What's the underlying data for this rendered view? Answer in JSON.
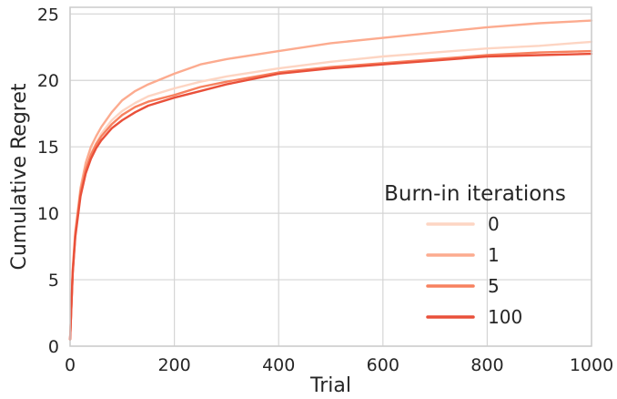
{
  "chart_data": {
    "type": "line",
    "xlabel": "Trial",
    "ylabel": "Cumulative Regret",
    "xlim": [
      0,
      1000
    ],
    "ylim": [
      0,
      25.5
    ],
    "xticks": [
      0,
      200,
      400,
      600,
      800,
      1000
    ],
    "yticks": [
      0,
      5,
      10,
      15,
      20,
      25
    ],
    "grid": true,
    "legend": {
      "title": "Burn-in iterations",
      "placement": "lower-right"
    },
    "x": [
      0,
      5,
      10,
      20,
      30,
      40,
      50,
      60,
      80,
      100,
      125,
      150,
      200,
      250,
      300,
      400,
      500,
      600,
      700,
      800,
      900,
      1000
    ],
    "series": [
      {
        "name": "0",
        "color": "#fdd5c3",
        "values": [
          0.5,
          5.5,
          8.3,
          11.5,
          13.2,
          14.5,
          15.3,
          16.0,
          17.0,
          17.7,
          18.3,
          18.8,
          19.4,
          19.9,
          20.3,
          20.9,
          21.4,
          21.8,
          22.1,
          22.4,
          22.6,
          22.9
        ]
      },
      {
        "name": "1",
        "color": "#fcab8f",
        "values": [
          0.5,
          5.8,
          8.6,
          11.9,
          13.8,
          15.0,
          15.8,
          16.5,
          17.6,
          18.5,
          19.2,
          19.7,
          20.5,
          21.2,
          21.6,
          22.2,
          22.8,
          23.2,
          23.6,
          24.0,
          24.3,
          24.5
        ]
      },
      {
        "name": "5",
        "color": "#f7815f",
        "values": [
          0.5,
          5.6,
          8.4,
          11.6,
          13.3,
          14.4,
          15.2,
          15.8,
          16.7,
          17.4,
          18.0,
          18.4,
          18.9,
          19.5,
          19.9,
          20.6,
          21.0,
          21.3,
          21.6,
          21.9,
          22.1,
          22.2
        ]
      },
      {
        "name": "100",
        "color": "#e9503a",
        "values": [
          0.5,
          5.5,
          8.2,
          11.3,
          13.0,
          14.1,
          14.9,
          15.5,
          16.4,
          17.0,
          17.6,
          18.1,
          18.7,
          19.2,
          19.7,
          20.5,
          20.9,
          21.2,
          21.5,
          21.8,
          21.9,
          22.0
        ]
      }
    ]
  }
}
